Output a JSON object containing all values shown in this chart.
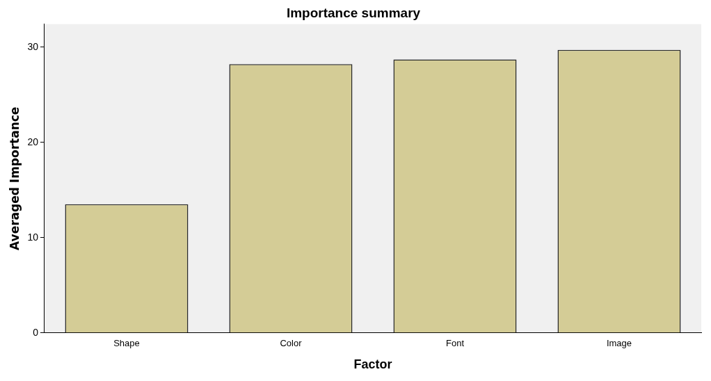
{
  "chart_data": {
    "type": "bar",
    "title": "Importance summary",
    "xlabel": "Factor",
    "ylabel": "Averaged Importance",
    "categories": [
      "Shape",
      "Color",
      "Font",
      "Image"
    ],
    "values": [
      13.5,
      28.2,
      28.7,
      29.7
    ],
    "color": "#d4cc96",
    "ylim": [
      0,
      32.4
    ],
    "yticks": [
      0,
      10,
      20,
      30
    ],
    "grid": false,
    "legend": false
  }
}
